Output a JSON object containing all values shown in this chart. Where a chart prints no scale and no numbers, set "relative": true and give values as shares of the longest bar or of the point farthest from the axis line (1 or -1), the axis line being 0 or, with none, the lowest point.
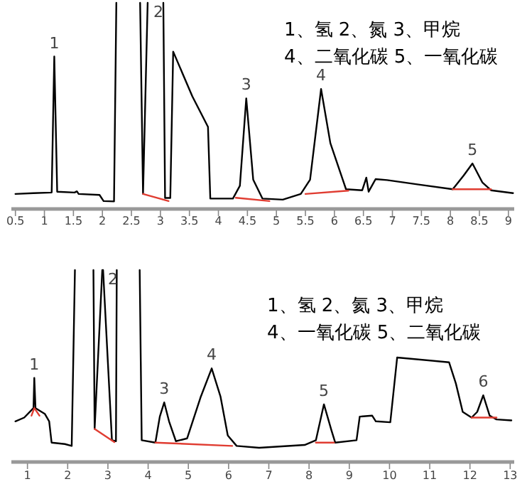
{
  "chart_data": [
    {
      "type": "line",
      "relative": true,
      "xlim": [
        0.43,
        9.1
      ],
      "xticks": [
        0.5,
        1,
        1.5,
        2,
        2.5,
        3,
        3.5,
        4,
        4.5,
        5,
        5.5,
        6,
        6.5,
        7,
        7.5,
        8,
        8.5,
        9
      ],
      "series": [
        {
          "color": "#000000",
          "x": [
            0.5,
            0.81,
            1.125,
            1.17,
            1.22,
            1.52,
            1.56,
            1.59,
            1.95,
            2.02,
            2.2,
            2.24
          ],
          "values": [
            0.06,
            0.064,
            0.067,
            0.736,
            0.071,
            0.067,
            0.073,
            0.06,
            0.055,
            0.025,
            0.023,
            1
          ]
        },
        {
          "color": "#000000",
          "x": [
            2.65,
            2.7,
            2.78
          ],
          "values": [
            1,
            0.06,
            1
          ]
        },
        {
          "color": "#000000",
          "x": [
            3.05,
            3.08,
            3.17,
            3.22,
            3.55,
            3.82,
            3.86,
            4.25,
            4.37,
            4.48,
            4.6,
            4.76,
            5.11,
            5.42,
            5.58,
            5.77,
            5.93,
            6.2,
            6.48,
            6.55,
            6.59,
            6.71,
            6.91,
            7.45,
            8.04,
            8.23,
            8.38,
            8.55,
            8.7,
            9.08
          ],
          "values": [
            1,
            0.04,
            0.04,
            0.76,
            0.54,
            0.39,
            0.037,
            0.037,
            0.1,
            0.53,
            0.13,
            0.037,
            0.032,
            0.06,
            0.13,
            0.576,
            0.31,
            0.083,
            0.078,
            0.14,
            0.071,
            0.133,
            0.128,
            0.106,
            0.083,
            0.151,
            0.21,
            0.117,
            0.078,
            0.064
          ]
        },
        {
          "color": "#e03c31",
          "x": [
            2.7,
            3.14
          ],
          "values": [
            0.06,
            0.025
          ]
        },
        {
          "color": "#e03c31",
          "x": [
            4.3,
            4.88
          ],
          "values": [
            0.041,
            0.025
          ]
        },
        {
          "color": "#e03c31",
          "x": [
            5.5,
            6.24
          ],
          "values": [
            0.06,
            0.076
          ]
        },
        {
          "color": "#e03c31",
          "x": [
            8.04,
            8.7
          ],
          "values": [
            0.083,
            0.083
          ]
        }
      ],
      "annotations": [
        {
          "text": "1",
          "x": 1.17,
          "y": 0.736
        },
        {
          "text": "2",
          "x": 2.78,
          "y": 1
        },
        {
          "text": "3",
          "x": 4.48,
          "y": 0.53
        },
        {
          "text": "4",
          "x": 5.77,
          "y": 0.576
        },
        {
          "text": "5",
          "x": 8.38,
          "y": 0.21
        },
        "1、氢 2、氮 3、甲烷",
        "4、二氧化碳 5、一氧化碳"
      ]
    },
    {
      "type": "line",
      "relative": true,
      "xlim": [
        0.6,
        13.1
      ],
      "xticks": [
        1,
        2,
        3,
        4,
        5,
        6,
        7,
        8,
        9,
        10,
        11,
        12,
        13
      ],
      "series": [
        {
          "color": "#000000",
          "x": [
            0.7,
            0.92,
            1.15,
            1.17,
            1.2,
            1.43,
            1.54,
            1.6,
            1.93,
            2.1,
            2.18
          ],
          "values": [
            0.2,
            0.22,
            0.27,
            0.43,
            0.27,
            0.24,
            0.2,
            0.0875,
            0.08,
            0.07,
            1
          ]
        },
        {
          "color": "#000000",
          "x": [
            2.64,
            2.67,
            2.86
          ],
          "values": [
            1,
            0.16,
            1
          ]
        },
        {
          "color": "#000000",
          "x": [
            2.88,
            3.1,
            3.2,
            3.22
          ],
          "values": [
            1,
            0.1,
            0.095,
            1
          ]
        },
        {
          "color": "#000000",
          "x": [
            3.79,
            3.84,
            4.18,
            4.29,
            4.4,
            4.52,
            4.69,
            4.97,
            5.3,
            5.58,
            5.8,
            5.98,
            6.2,
            6.76,
            7.89,
            8.17,
            8.37,
            8.56,
            8.65,
            9.18,
            9.26,
            9.57,
            9.66,
            10.02,
            10.19,
            11.48,
            11.65,
            11.82,
            12.04,
            12.18,
            12.33,
            12.49,
            12.66,
            13.03
          ],
          "values": [
            1,
            0.1,
            0.0875,
            0.225,
            0.3,
            0.2,
            0.095,
            0.11,
            0.325,
            0.48,
            0.33,
            0.125,
            0.07,
            0.06,
            0.075,
            0.1,
            0.29,
            0.15,
            0.0875,
            0.1,
            0.225,
            0.23,
            0.2,
            0.195,
            0.5375,
            0.5125,
            0.4,
            0.25,
            0.22,
            0.25,
            0.3375,
            0.23,
            0.21,
            0.205
          ]
        },
        {
          "color": "#e03c31",
          "x": [
            1.1,
            1.17,
            1.3
          ],
          "values": [
            0.23,
            0.27,
            0.23
          ]
        },
        {
          "color": "#e03c31",
          "x": [
            2.67,
            3.16
          ],
          "values": [
            0.16,
            0.09
          ]
        },
        {
          "color": "#e03c31",
          "x": [
            4.18,
            6.09
          ],
          "values": [
            0.0875,
            0.07
          ]
        },
        {
          "color": "#e03c31",
          "x": [
            8.17,
            8.62
          ],
          "values": [
            0.0875,
            0.0875
          ]
        },
        {
          "color": "#e03c31",
          "x": [
            12.04,
            12.66
          ],
          "values": [
            0.22,
            0.22
          ]
        }
      ],
      "annotations": [
        {
          "text": "1",
          "x": 1.17,
          "y": 0.43
        },
        {
          "text": "2",
          "x": 2.86,
          "y": 1
        },
        {
          "text": "3",
          "x": 4.4,
          "y": 0.3
        },
        {
          "text": "4",
          "x": 5.58,
          "y": 0.48
        },
        {
          "text": "5",
          "x": 8.37,
          "y": 0.29
        },
        {
          "text": "6",
          "x": 12.33,
          "y": 0.3375
        },
        "1、氢 2、氦 3、甲烷",
        "4、一氧化碳 5、二氧化碳"
      ]
    }
  ]
}
